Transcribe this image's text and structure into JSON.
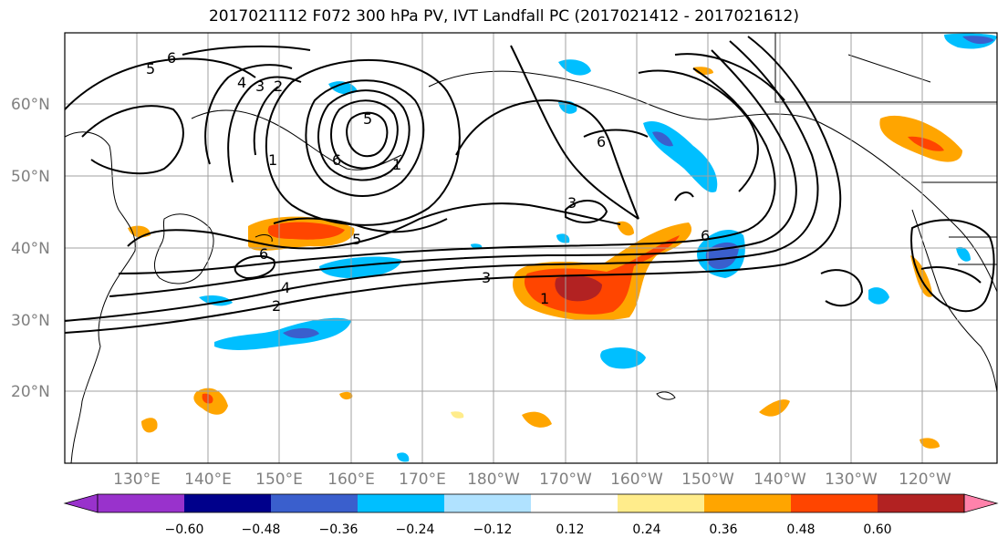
{
  "title": "2017021112 F072 300 hPa PV, IVT Landfall PC (2017021412 - 2017021612)",
  "map": {
    "lat_labels": [
      "60°N",
      "50°N",
      "40°N",
      "30°N",
      "20°N"
    ],
    "lon_labels": [
      "130°E",
      "140°E",
      "150°E",
      "160°E",
      "170°E",
      "180°W",
      "170°W",
      "160°W",
      "150°W",
      "140°W",
      "130°W",
      "120°W"
    ],
    "contour_labels": [
      "6",
      "5",
      "4",
      "3",
      "2",
      "5",
      "1",
      "6",
      "6",
      "3",
      "5",
      "6",
      "3",
      "4",
      "2",
      "1",
      "6",
      "1"
    ]
  },
  "colorbar": {
    "ticks": [
      "−0.60",
      "−0.48",
      "−0.36",
      "−0.24",
      "−0.12",
      "0.12",
      "0.24",
      "0.36",
      "0.48",
      "0.60"
    ],
    "colors": [
      "#9932cc",
      "#00008b",
      "#3a5fcd",
      "#00bfff",
      "#b0e2ff",
      "#ffffff",
      "#ffec8b",
      "#ffa500",
      "#ff4500",
      "#b22222",
      "#ff82ab"
    ]
  }
}
